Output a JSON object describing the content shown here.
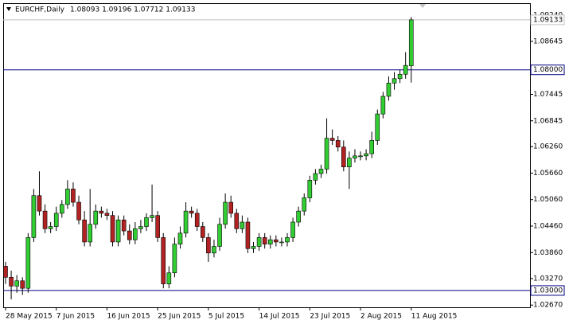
{
  "chart_data": {
    "type": "candlestick",
    "symbol": "EURCHF,Daily",
    "header_values": "1.08093 1.09196 1.07712 1.09133",
    "categories": [
      "28 May 2015",
      null,
      null,
      null,
      null,
      null,
      null,
      null,
      null,
      "7 Jun 2015",
      null,
      null,
      null,
      null,
      null,
      null,
      null,
      null,
      "16 Jun 2015",
      null,
      null,
      null,
      null,
      null,
      null,
      null,
      null,
      "25 Jun 2015",
      null,
      null,
      null,
      null,
      null,
      null,
      null,
      null,
      "5 Jul 2015",
      null,
      null,
      null,
      null,
      null,
      null,
      null,
      null,
      "14 Jul 2015",
      null,
      null,
      null,
      null,
      null,
      null,
      null,
      null,
      "23 Jul 2015",
      null,
      null,
      null,
      null,
      null,
      null,
      null,
      null,
      "2 Aug 2015",
      null,
      null,
      null,
      null,
      null,
      null,
      null,
      null,
      "11 Aug 2015"
    ],
    "open": [
      1.0355,
      1.033,
      1.031,
      1.0322,
      1.0305,
      1.042,
      1.0515,
      1.048,
      1.044,
      1.0445,
      1.0475,
      1.0495,
      1.053,
      1.05,
      1.046,
      1.041,
      1.045,
      1.048,
      1.0475,
      1.047,
      1.041,
      1.046,
      1.0435,
      1.0415,
      1.044,
      1.0445,
      1.0465,
      1.047,
      1.042,
      1.0315,
      1.034,
      1.0405,
      1.043,
      1.048,
      1.0475,
      1.0445,
      1.042,
      1.0385,
      1.04,
      1.045,
      1.05,
      1.0475,
      1.044,
      1.0455,
      1.0395,
      1.04,
      1.042,
      1.0405,
      1.0415,
      1.041,
      1.041,
      1.042,
      1.0455,
      1.048,
      1.051,
      1.055,
      1.0565,
      1.0575,
      1.0645,
      1.064,
      1.0625,
      1.058,
      1.06,
      1.0605,
      1.0605,
      1.061,
      1.064,
      1.07,
      1.074,
      1.077,
      1.078,
      1.079,
      1.08093
    ],
    "high": [
      1.0365,
      1.0345,
      1.0335,
      1.033,
      1.043,
      1.053,
      1.057,
      1.0495,
      1.0455,
      1.049,
      1.0505,
      1.055,
      1.0545,
      1.0515,
      1.048,
      1.053,
      1.0495,
      1.049,
      1.0485,
      1.048,
      1.047,
      1.047,
      1.045,
      1.0455,
      1.046,
      1.0475,
      1.054,
      1.048,
      1.043,
      1.0355,
      1.042,
      1.0445,
      1.05,
      1.049,
      1.0485,
      1.0455,
      1.043,
      1.0415,
      1.0465,
      1.052,
      1.0515,
      1.0485,
      1.047,
      1.0465,
      1.041,
      1.043,
      1.043,
      1.0425,
      1.0425,
      1.042,
      1.043,
      1.0465,
      1.049,
      1.052,
      1.056,
      1.0575,
      1.0585,
      1.069,
      1.0665,
      1.065,
      1.064,
      1.0615,
      1.062,
      1.0615,
      1.062,
      1.066,
      1.071,
      1.075,
      1.0785,
      1.0795,
      1.08,
      1.084,
      1.09196
    ],
    "low": [
      1.0315,
      1.028,
      1.0295,
      1.029,
      1.0295,
      1.041,
      1.047,
      1.043,
      1.043,
      1.0435,
      1.0465,
      1.0485,
      1.049,
      1.045,
      1.04,
      1.04,
      1.044,
      1.0465,
      1.046,
      1.04,
      1.04,
      1.0425,
      1.0405,
      1.0405,
      1.043,
      1.0435,
      1.0455,
      1.041,
      1.0305,
      1.0305,
      1.033,
      1.0395,
      1.042,
      1.0465,
      1.0435,
      1.041,
      1.0365,
      1.0375,
      1.039,
      1.044,
      1.0465,
      1.043,
      1.043,
      1.0385,
      1.0385,
      1.039,
      1.0395,
      1.0395,
      1.04,
      1.04,
      1.04,
      1.041,
      1.0445,
      1.047,
      1.05,
      1.054,
      1.0555,
      1.0565,
      1.063,
      1.0615,
      1.057,
      1.053,
      1.059,
      1.0595,
      1.0595,
      1.06,
      1.063,
      1.069,
      1.073,
      1.0755,
      1.077,
      1.078,
      1.07712
    ],
    "close": [
      1.033,
      1.031,
      1.0322,
      1.0305,
      1.042,
      1.0515,
      1.048,
      1.044,
      1.0445,
      1.0475,
      1.0495,
      1.053,
      1.05,
      1.046,
      1.041,
      1.045,
      1.048,
      1.0475,
      1.047,
      1.041,
      1.046,
      1.0435,
      1.0415,
      1.044,
      1.0445,
      1.0465,
      1.047,
      1.042,
      1.0315,
      1.034,
      1.0405,
      1.043,
      1.048,
      1.0475,
      1.0445,
      1.042,
      1.0385,
      1.04,
      1.045,
      1.05,
      1.0475,
      1.044,
      1.0455,
      1.0395,
      1.04,
      1.042,
      1.0405,
      1.0415,
      1.041,
      1.041,
      1.042,
      1.0455,
      1.048,
      1.051,
      1.055,
      1.0565,
      1.0575,
      1.0645,
      1.064,
      1.0625,
      1.058,
      1.06,
      1.0605,
      1.0605,
      1.061,
      1.064,
      1.07,
      1.074,
      1.077,
      1.078,
      1.079,
      1.081,
      1.09133
    ],
    "up_color": "#32cd32",
    "down_color": "#b22222",
    "ylim": [
      1.0262,
      1.0951
    ],
    "yticks": [
      {
        "value": 1.0924,
        "label": "1.09240"
      },
      {
        "value": 1.08645,
        "label": "1.08645"
      },
      {
        "value": 1.07445,
        "label": "1.07445"
      },
      {
        "value": 1.06845,
        "label": "1.06845"
      },
      {
        "value": 1.0626,
        "label": "1.06260"
      },
      {
        "value": 1.0566,
        "label": "1.05660"
      },
      {
        "value": 1.0506,
        "label": "1.05060"
      },
      {
        "value": 1.0446,
        "label": "1.04460"
      },
      {
        "value": 1.0386,
        "label": "1.03860"
      },
      {
        "value": 1.0327,
        "label": "1.03270"
      },
      {
        "value": 1.0267,
        "label": "1.02670"
      }
    ],
    "hlines": [
      {
        "value": 1.09133,
        "label": "1.09133",
        "color": "#c0c0c0"
      },
      {
        "value": 1.08,
        "label": "1.08000",
        "color": "#000080"
      },
      {
        "value": 1.03,
        "label": "1.03000",
        "color": "#000080"
      }
    ]
  }
}
